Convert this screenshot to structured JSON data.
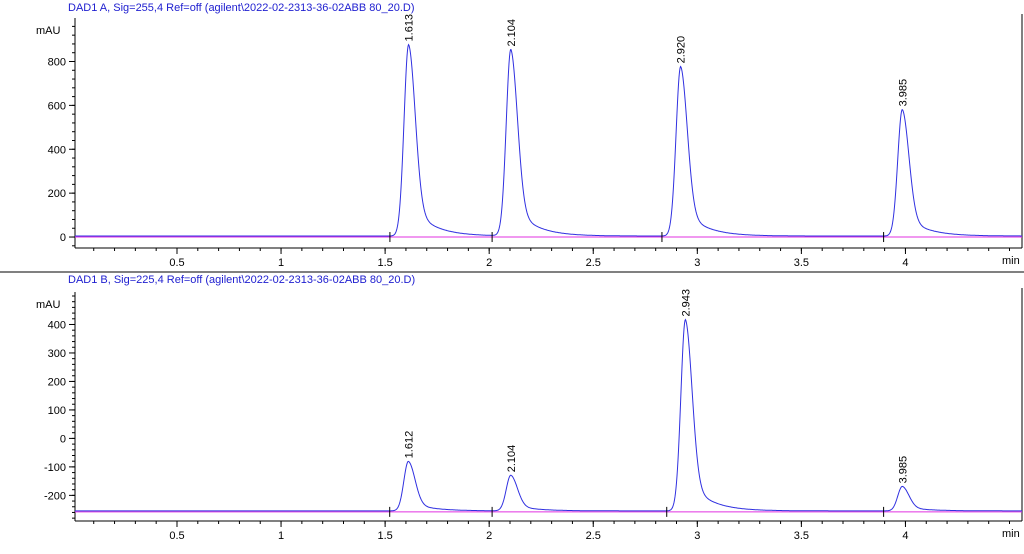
{
  "chart_data": [
    {
      "type": "chromatogram",
      "title": "DAD1 A, Sig=255,4 Ref=off (agilent\\2022-02-2313-36-02ABB 80_20.D)",
      "y_label": "mAU",
      "x_label": "min",
      "x": [
        1.613,
        2.104,
        2.92,
        3.985
      ],
      "x_labels": [
        "1.613",
        "2.104",
        "2.920",
        "3.985"
      ],
      "values": [
        873,
        850,
        773,
        577
      ],
      "baseline": 0,
      "color": "#3030e0",
      "baseline_color": "#e030e0",
      "xlim": [
        0.01,
        4.56
      ],
      "xticks": [
        0.5,
        1,
        1.5,
        2,
        2.5,
        3,
        3.5,
        4
      ],
      "ylim": [
        -50,
        980
      ],
      "yticks": [
        0,
        200,
        400,
        600,
        800
      ]
    },
    {
      "type": "chromatogram",
      "title": "DAD1 B, Sig=225,4 Ref=off (agilent\\2022-02-2313-36-02ABB 80_20.D)",
      "y_label": "mAU",
      "x_label": "min",
      "x": [
        1.612,
        2.104,
        2.943,
        3.985
      ],
      "x_labels": [
        "1.612",
        "2.104",
        "2.943",
        "3.985"
      ],
      "values": [
        -84,
        -133,
        414,
        -172
      ],
      "baseline": -258,
      "color": "#3030e0",
      "baseline_color": "#e030e0",
      "xlim": [
        0.01,
        4.56
      ],
      "xticks": [
        0.5,
        1,
        1.5,
        2,
        2.5,
        3,
        3.5,
        4
      ],
      "ylim": [
        -290,
        500
      ],
      "yticks": [
        -200,
        -100,
        0,
        100,
        200,
        300,
        400
      ]
    }
  ]
}
